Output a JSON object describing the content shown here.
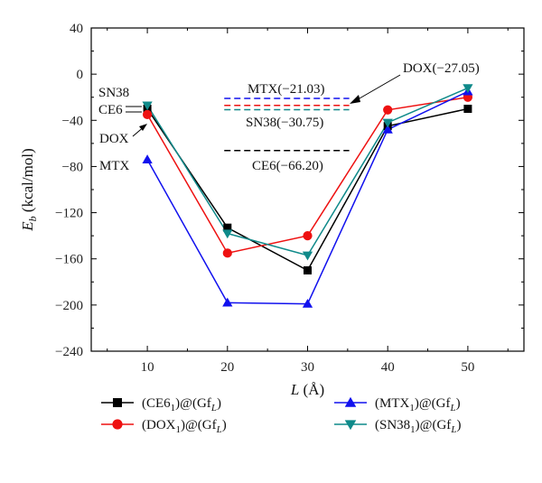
{
  "chart_data": {
    "type": "line",
    "x": [
      10,
      20,
      30,
      40,
      50
    ],
    "xlim": [
      3,
      57
    ],
    "ylim": [
      -240,
      40
    ],
    "xticks": [
      10,
      20,
      30,
      40,
      50
    ],
    "yticks": [
      40,
      0,
      -40,
      -80,
      -120,
      -160,
      -200,
      -240
    ],
    "xlabel": {
      "main": "L",
      "unit": "(Å)"
    },
    "ylabel": {
      "main": "E",
      "sub": "b",
      "unit": "(kcal/mol)"
    },
    "series": [
      {
        "key": "ce6",
        "name": {
          "pre": "(CE6",
          "sub1": "1",
          "mid": ")@(Gf",
          "sub2": "L",
          "post": ")"
        },
        "color": "#000000",
        "marker": "square",
        "y": [
          -30,
          -133,
          -170,
          -45,
          -30
        ]
      },
      {
        "key": "dox",
        "name": {
          "pre": "(DOX",
          "sub1": "1",
          "mid": ")@(Gf",
          "sub2": "L",
          "post": ")"
        },
        "color": "#ee1111",
        "marker": "circle",
        "y": [
          -35,
          -155,
          -140,
          -31,
          -20
        ]
      },
      {
        "key": "mtx",
        "name": {
          "pre": "(MTX",
          "sub1": "1",
          "mid": ")@(Gf",
          "sub2": "L",
          "post": ")"
        },
        "color": "#1111ee",
        "marker": "triangle-up",
        "y": [
          -74,
          -198,
          -199,
          -48,
          -15
        ]
      },
      {
        "key": "sn38",
        "name": {
          "pre": "(SN38",
          "sub1": "1",
          "mid": ")@(Gf",
          "sub2": "L",
          "post": ")"
        },
        "color": "#0f8a8a",
        "marker": "triangle-down",
        "y": [
          -27,
          -138,
          -157,
          -42,
          -12
        ]
      }
    ],
    "reference_lines": [
      {
        "key": "mtx",
        "value": -21.03,
        "color": "#1111ee",
        "label": "MTX(−21.03)"
      },
      {
        "key": "dox",
        "value": -27.05,
        "color": "#ee1111",
        "label": "DOX(−27.05)"
      },
      {
        "key": "sn38",
        "value": -30.75,
        "color": "#0f8a8a",
        "label": "SN38(−30.75)"
      },
      {
        "key": "ce6",
        "value": -66.2,
        "color": "#000000",
        "label": "CE6(−66.20)"
      }
    ],
    "side_labels": {
      "sn38": "SN38",
      "ce6": "CE6",
      "dox": "DOX",
      "mtx": "MTX"
    },
    "legend_position": "bottom"
  }
}
